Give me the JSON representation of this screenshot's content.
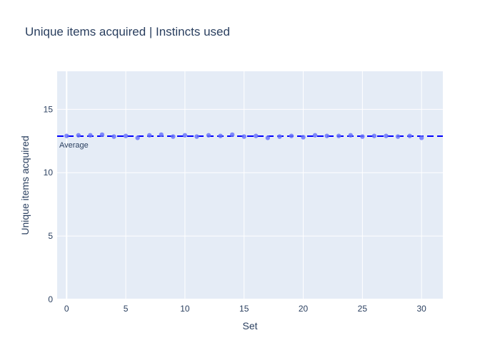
{
  "chart_data": {
    "type": "scatter",
    "title": "Unique items acquired | Instincts used",
    "xlabel": "Set",
    "ylabel": "Unique items acquired",
    "xlim": [
      -0.8,
      31.8
    ],
    "ylim": [
      0,
      18
    ],
    "xticks": [
      0,
      5,
      10,
      15,
      20,
      25,
      30
    ],
    "yticks": [
      0,
      5,
      10,
      15
    ],
    "grid": true,
    "x": [
      0,
      1,
      2,
      3,
      4,
      5,
      6,
      7,
      8,
      9,
      10,
      11,
      12,
      13,
      14,
      15,
      16,
      17,
      18,
      19,
      20,
      21,
      22,
      23,
      24,
      25,
      26,
      27,
      28,
      29,
      30
    ],
    "y": [
      12.9,
      12.95,
      12.95,
      13.0,
      12.85,
      12.9,
      12.75,
      12.95,
      13.0,
      12.85,
      12.95,
      12.85,
      12.95,
      12.9,
      13.0,
      12.85,
      12.9,
      12.75,
      12.85,
      12.9,
      12.8,
      12.95,
      12.9,
      12.9,
      12.95,
      12.85,
      12.9,
      12.9,
      12.85,
      12.9,
      12.75
    ],
    "average": 12.88,
    "average_label": "Average",
    "colors": {
      "marker": "#636efa",
      "average_line": "#0000ff",
      "plot_bg": "#e5ecf6",
      "grid": "#ffffff",
      "text": "#2a3f5f"
    }
  }
}
